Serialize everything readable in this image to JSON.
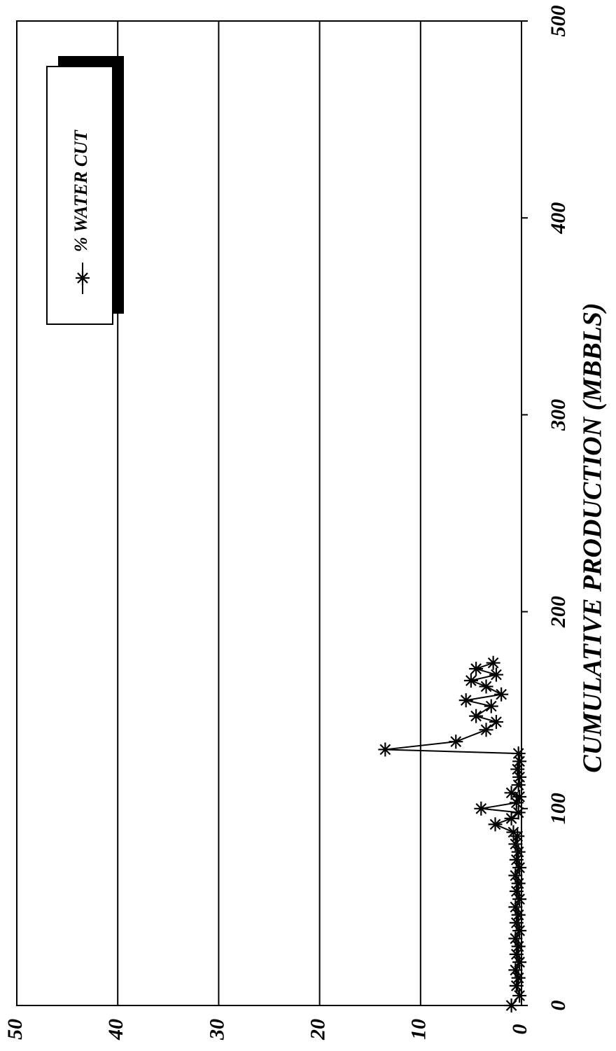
{
  "chart_data": {
    "type": "scatter",
    "orientation": "rotated-90-clockwise",
    "xlabel": "CUMULATIVE PRODUCTION (MBBLS)",
    "ylabel": "",
    "xlim": [
      0,
      500
    ],
    "ylim": [
      0,
      50
    ],
    "x_ticks": [
      "0",
      "100",
      "200",
      "300",
      "400",
      "500"
    ],
    "y_ticks": [
      "0",
      "10",
      "20",
      "30",
      "40",
      "50"
    ],
    "grid": "horizontal-major",
    "legend": {
      "position": "top-left",
      "entries": [
        "% WATER CUT"
      ]
    },
    "series": [
      {
        "name": "% WATER CUT",
        "marker": "asterisk",
        "color": "#000000",
        "points": [
          [
            0,
            1.0
          ],
          [
            5,
            0.2
          ],
          [
            10,
            0.5
          ],
          [
            14,
            0.3
          ],
          [
            18,
            0.6
          ],
          [
            22,
            0.2
          ],
          [
            26,
            0.5
          ],
          [
            30,
            0.3
          ],
          [
            34,
            0.6
          ],
          [
            38,
            0.2
          ],
          [
            42,
            0.5
          ],
          [
            46,
            0.3
          ],
          [
            50,
            0.6
          ],
          [
            54,
            0.2
          ],
          [
            58,
            0.5
          ],
          [
            62,
            0.3
          ],
          [
            66,
            0.6
          ],
          [
            70,
            0.2
          ],
          [
            74,
            0.5
          ],
          [
            78,
            0.3
          ],
          [
            82,
            0.6
          ],
          [
            86,
            0.4
          ],
          [
            88,
            0.8
          ],
          [
            92,
            2.6
          ],
          [
            95,
            1.0
          ],
          [
            98,
            0.3
          ],
          [
            100,
            4.0
          ],
          [
            103,
            0.5
          ],
          [
            106,
            0.2
          ],
          [
            108,
            1.0
          ],
          [
            112,
            0.3
          ],
          [
            116,
            0.2
          ],
          [
            120,
            0.4
          ],
          [
            124,
            0.2
          ],
          [
            128,
            0.3
          ],
          [
            130,
            13.5
          ],
          [
            134,
            6.5
          ],
          [
            140,
            3.5
          ],
          [
            144,
            2.5
          ],
          [
            147,
            4.5
          ],
          [
            152,
            3.0
          ],
          [
            155,
            5.5
          ],
          [
            158,
            2.0
          ],
          [
            162,
            3.5
          ],
          [
            165,
            5.0
          ],
          [
            168,
            2.5
          ],
          [
            171,
            4.5
          ],
          [
            174,
            2.8
          ]
        ]
      }
    ]
  }
}
